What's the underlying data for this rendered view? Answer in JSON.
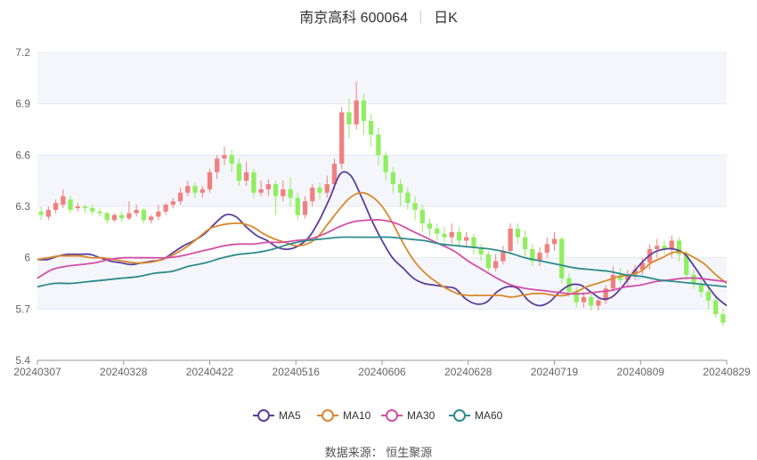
{
  "header": {
    "name": "南京高科 600064",
    "period": "日K"
  },
  "source": "数据来源： 恒生聚源",
  "colors": {
    "up": "#f08080",
    "down": "#90ee60",
    "MA5": "#5b3f9a",
    "MA10": "#d9882b",
    "MA30": "#d24fa6",
    "MA60": "#2e8b8b",
    "band": "#f4f6fb"
  },
  "chart_data": {
    "type": "candlestick",
    "title": "南京高科 600064",
    "ylim": [
      5.4,
      7.2
    ],
    "yticks": [
      "7.2",
      "6.9",
      "6.6",
      "6.3",
      "6",
      "5.7",
      "5.4"
    ],
    "xticks": [
      "20240307",
      "20240328",
      "20240422",
      "20240516",
      "20240606",
      "20240628",
      "20240719",
      "20240809",
      "20240829"
    ],
    "legend": [
      "MA5",
      "MA10",
      "MA30",
      "MA60"
    ],
    "legend_position": "bottom",
    "candles": [
      [
        6.27,
        6.25,
        6.3,
        6.22
      ],
      [
        6.24,
        6.28,
        6.3,
        6.22
      ],
      [
        6.28,
        6.32,
        6.34,
        6.26
      ],
      [
        6.31,
        6.36,
        6.4,
        6.29
      ],
      [
        6.34,
        6.28,
        6.36,
        6.26
      ],
      [
        6.29,
        6.3,
        6.32,
        6.27
      ],
      [
        6.3,
        6.29,
        6.31,
        6.26
      ],
      [
        6.29,
        6.27,
        6.31,
        6.25
      ],
      [
        6.27,
        6.26,
        6.29,
        6.24
      ],
      [
        6.26,
        6.22,
        6.27,
        6.2
      ],
      [
        6.22,
        6.25,
        6.26,
        6.21
      ],
      [
        6.25,
        6.23,
        6.27,
        6.21
      ],
      [
        6.23,
        6.26,
        6.33,
        6.22
      ],
      [
        6.26,
        6.28,
        6.31,
        6.24
      ],
      [
        6.28,
        6.22,
        6.29,
        6.2
      ],
      [
        6.22,
        6.24,
        6.25,
        6.2
      ],
      [
        6.24,
        6.27,
        6.31,
        6.22
      ],
      [
        6.27,
        6.31,
        6.32,
        6.25
      ],
      [
        6.31,
        6.33,
        6.35,
        6.29
      ],
      [
        6.33,
        6.38,
        6.41,
        6.31
      ],
      [
        6.38,
        6.42,
        6.45,
        6.36
      ],
      [
        6.42,
        6.38,
        6.44,
        6.35
      ],
      [
        6.38,
        6.4,
        6.42,
        6.35
      ],
      [
        6.4,
        6.5,
        6.52,
        6.38
      ],
      [
        6.5,
        6.58,
        6.6,
        6.46
      ],
      [
        6.58,
        6.6,
        6.65,
        6.54
      ],
      [
        6.6,
        6.55,
        6.63,
        6.5
      ],
      [
        6.55,
        6.45,
        6.58,
        6.42
      ],
      [
        6.45,
        6.5,
        6.56,
        6.42
      ],
      [
        6.5,
        6.38,
        6.52,
        6.35
      ],
      [
        6.38,
        6.4,
        6.45,
        6.36
      ],
      [
        6.4,
        6.43,
        6.46,
        6.36
      ],
      [
        6.43,
        6.36,
        6.45,
        6.25
      ],
      [
        6.36,
        6.4,
        6.45,
        6.33
      ],
      [
        6.4,
        6.35,
        6.47,
        6.3
      ],
      [
        6.35,
        6.25,
        6.38,
        6.22
      ],
      [
        6.25,
        6.33,
        6.36,
        6.23
      ],
      [
        6.33,
        6.41,
        6.43,
        6.3
      ],
      [
        6.41,
        6.38,
        6.44,
        6.34
      ],
      [
        6.38,
        6.43,
        6.48,
        6.35
      ],
      [
        6.43,
        6.55,
        6.58,
        6.4
      ],
      [
        6.55,
        6.85,
        6.88,
        6.52
      ],
      [
        6.85,
        6.78,
        6.93,
        6.7
      ],
      [
        6.78,
        6.92,
        7.03,
        6.75
      ],
      [
        6.92,
        6.8,
        6.96,
        6.72
      ],
      [
        6.8,
        6.72,
        6.84,
        6.65
      ],
      [
        6.72,
        6.6,
        6.76,
        6.54
      ],
      [
        6.6,
        6.5,
        6.62,
        6.45
      ],
      [
        6.5,
        6.43,
        6.53,
        6.38
      ],
      [
        6.43,
        6.38,
        6.46,
        6.3
      ],
      [
        6.38,
        6.32,
        6.41,
        6.28
      ],
      [
        6.32,
        6.28,
        6.36,
        6.22
      ],
      [
        6.28,
        6.2,
        6.31,
        6.15
      ],
      [
        6.2,
        6.17,
        6.23,
        6.12
      ],
      [
        6.17,
        6.14,
        6.2,
        6.1
      ],
      [
        6.14,
        6.12,
        6.18,
        6.08
      ],
      [
        6.12,
        6.15,
        6.2,
        6.08
      ],
      [
        6.15,
        6.1,
        6.18,
        6.06
      ],
      [
        6.1,
        6.12,
        6.15,
        6.06
      ],
      [
        6.12,
        6.06,
        6.14,
        6.02
      ],
      [
        6.06,
        6.02,
        6.08,
        5.98
      ],
      [
        6.02,
        5.94,
        6.04,
        5.92
      ],
      [
        5.94,
        5.98,
        6.02,
        5.92
      ],
      [
        5.98,
        6.04,
        6.07,
        5.96
      ],
      [
        6.04,
        6.17,
        6.2,
        6.02
      ],
      [
        6.17,
        6.12,
        6.2,
        6.08
      ],
      [
        6.12,
        6.05,
        6.16,
        6.0
      ],
      [
        6.05,
        5.98,
        6.08,
        5.95
      ],
      [
        5.98,
        6.03,
        6.06,
        5.95
      ],
      [
        6.03,
        6.08,
        6.12,
        6.0
      ],
      [
        6.08,
        6.11,
        6.15,
        6.04
      ],
      [
        6.11,
        5.88,
        6.12,
        5.85
      ],
      [
        5.88,
        5.8,
        5.91,
        5.77
      ],
      [
        5.8,
        5.74,
        5.83,
        5.71
      ],
      [
        5.74,
        5.77,
        5.8,
        5.71
      ],
      [
        5.77,
        5.72,
        5.79,
        5.69
      ],
      [
        5.72,
        5.75,
        5.77,
        5.69
      ],
      [
        5.75,
        5.82,
        5.84,
        5.73
      ],
      [
        5.82,
        5.9,
        5.95,
        5.8
      ],
      [
        5.9,
        5.87,
        5.94,
        5.85
      ],
      [
        5.87,
        5.9,
        5.93,
        5.84
      ],
      [
        5.9,
        5.93,
        5.96,
        5.87
      ],
      [
        5.93,
        5.97,
        6.0,
        5.9
      ],
      [
        5.97,
        6.05,
        6.08,
        5.93
      ],
      [
        6.05,
        6.07,
        6.11,
        6.0
      ],
      [
        6.07,
        6.05,
        6.1,
        6.02
      ],
      [
        6.05,
        6.1,
        6.13,
        6.0
      ],
      [
        6.1,
        6.02,
        6.12,
        5.98
      ],
      [
        6.02,
        5.9,
        6.04,
        5.87
      ],
      [
        5.9,
        5.85,
        5.93,
        5.82
      ],
      [
        5.85,
        5.8,
        5.88,
        5.77
      ],
      [
        5.8,
        5.75,
        5.83,
        5.7
      ],
      [
        5.75,
        5.67,
        5.77,
        5.65
      ],
      [
        5.67,
        5.62,
        5.7,
        5.6
      ]
    ],
    "series": [
      {
        "name": "MA5",
        "values": [
          5.99,
          5.99,
          6.01,
          6.02,
          6.02,
          6.02,
          6.0,
          5.98,
          5.97,
          5.96,
          5.97,
          5.98,
          5.99,
          6.03,
          6.07,
          6.1,
          6.14,
          6.2,
          6.25,
          6.24,
          6.18,
          6.13,
          6.1,
          6.06,
          6.05,
          6.07,
          6.12,
          6.22,
          6.35,
          6.49,
          6.48,
          6.36,
          6.22,
          6.1,
          6.0,
          5.94,
          5.88,
          5.85,
          5.84,
          5.83,
          5.82,
          5.76,
          5.73,
          5.74,
          5.8,
          5.83,
          5.82,
          5.75,
          5.72,
          5.74,
          5.8,
          5.84,
          5.84,
          5.8,
          5.76,
          5.77,
          5.83,
          5.91,
          5.98,
          6.03,
          6.05,
          6.05,
          6.02,
          5.94,
          5.85,
          5.77,
          5.72
        ]
      },
      {
        "name": "MA10",
        "values": [
          5.99,
          6.0,
          6.01,
          6.01,
          6.01,
          6.0,
          6.0,
          5.99,
          5.98,
          5.97,
          5.97,
          5.98,
          6.0,
          6.03,
          6.07,
          6.12,
          6.17,
          6.19,
          6.2,
          6.2,
          6.18,
          6.14,
          6.11,
          6.09,
          6.07,
          6.08,
          6.12,
          6.2,
          6.28,
          6.35,
          6.38,
          6.36,
          6.3,
          6.2,
          6.08,
          5.98,
          5.91,
          5.86,
          5.82,
          5.79,
          5.78,
          5.78,
          5.78,
          5.78,
          5.77,
          5.78,
          5.79,
          5.79,
          5.78,
          5.78,
          5.8,
          5.83,
          5.85,
          5.87,
          5.89,
          5.9,
          5.92,
          5.97,
          6.0,
          6.03,
          6.03,
          6.0,
          5.96,
          5.9,
          5.85
        ]
      },
      {
        "name": "MA30",
        "values": [
          5.88,
          5.93,
          5.95,
          5.96,
          5.97,
          5.99,
          6.0,
          6.0,
          6.0,
          6.0,
          6.01,
          6.03,
          6.05,
          6.07,
          6.08,
          6.08,
          6.09,
          6.09,
          6.1,
          6.11,
          6.14,
          6.18,
          6.21,
          6.22,
          6.22,
          6.2,
          6.16,
          6.12,
          6.08,
          6.04,
          5.98,
          5.93,
          5.88,
          5.84,
          5.82,
          5.81,
          5.8,
          5.79,
          5.79,
          5.8,
          5.81,
          5.83,
          5.84,
          5.86,
          5.87,
          5.88,
          5.88,
          5.87,
          5.86
        ]
      },
      {
        "name": "MA60",
        "values": [
          5.83,
          5.85,
          5.85,
          5.86,
          5.87,
          5.88,
          5.89,
          5.91,
          5.92,
          5.95,
          5.97,
          6.0,
          6.02,
          6.03,
          6.05,
          6.08,
          6.1,
          6.11,
          6.12,
          6.12,
          6.12,
          6.12,
          6.11,
          6.1,
          6.08,
          6.07,
          6.06,
          6.05,
          6.03,
          6.0,
          5.98,
          5.96,
          5.94,
          5.93,
          5.92,
          5.9,
          5.89,
          5.87,
          5.86,
          5.85,
          5.84,
          5.83
        ]
      }
    ]
  }
}
